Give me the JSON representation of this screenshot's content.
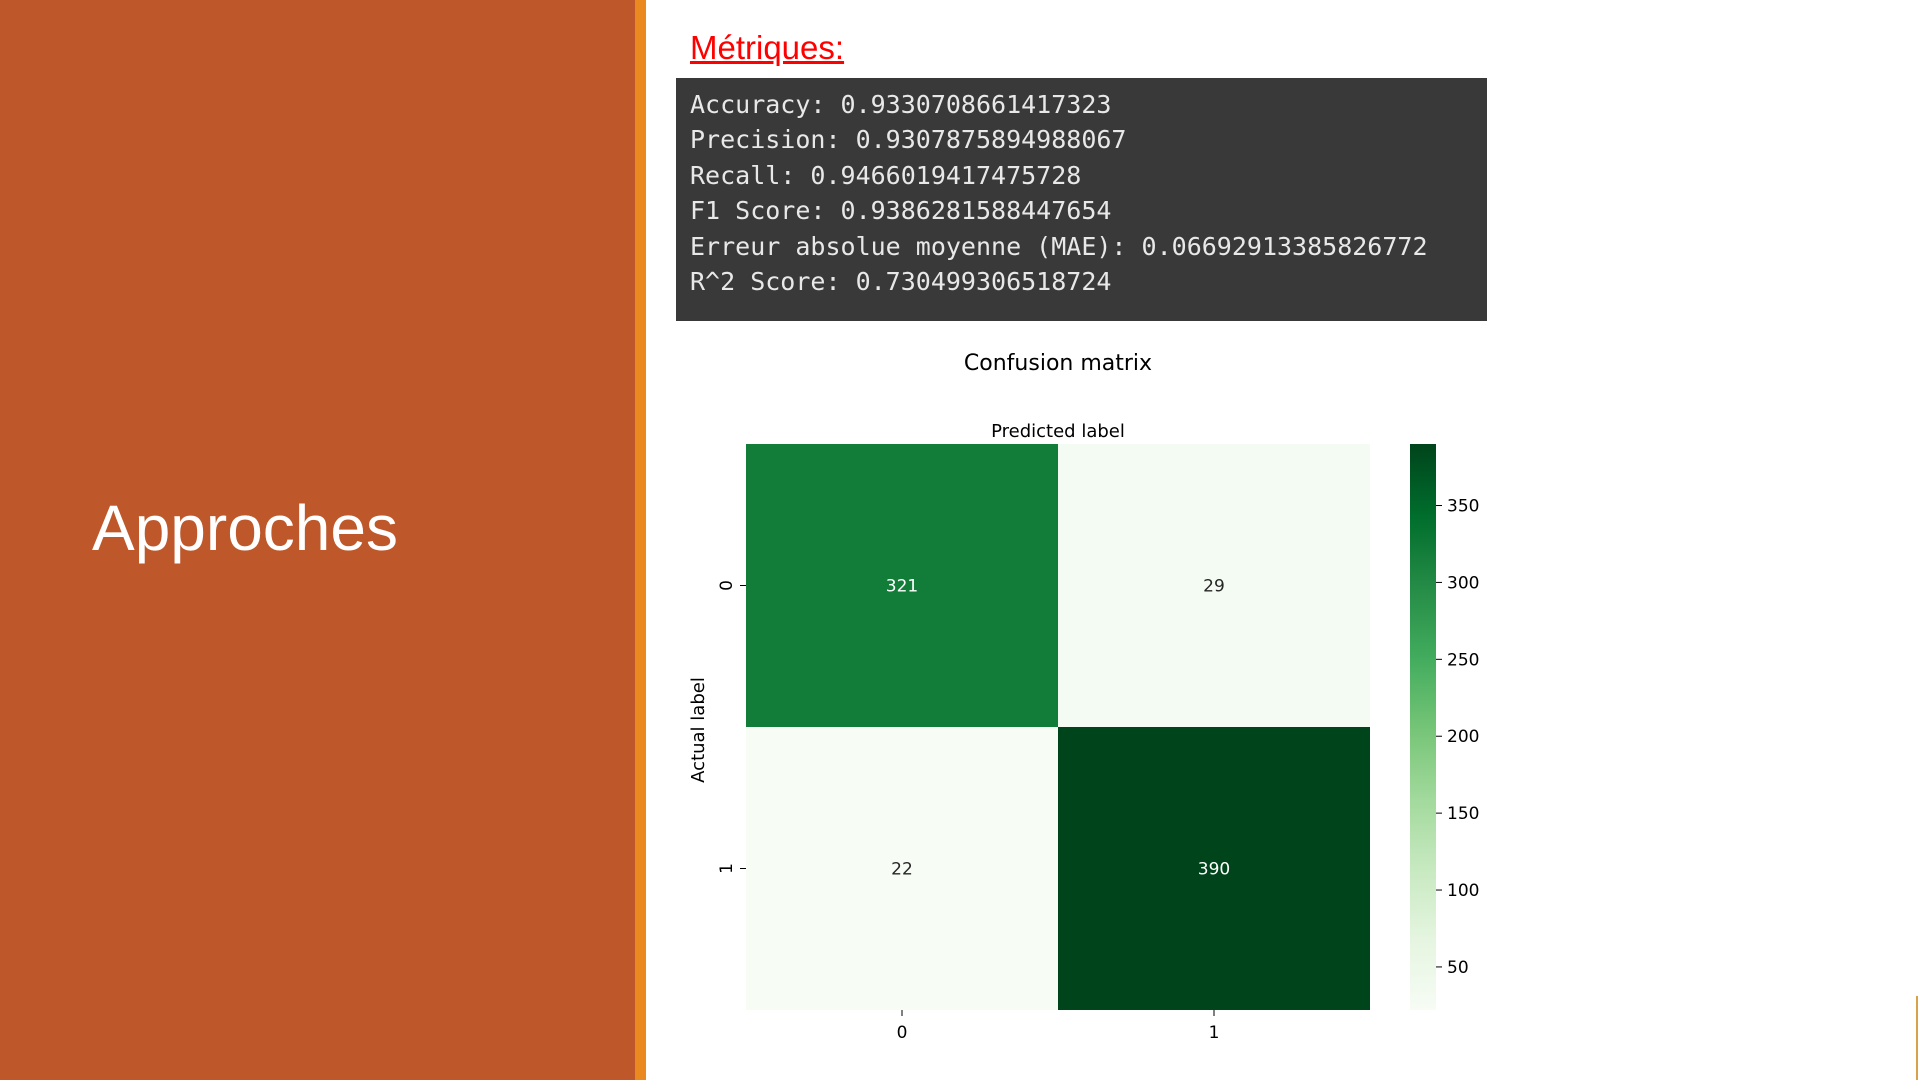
{
  "slide": {
    "title": "Approches",
    "metrics_heading": "Métriques:"
  },
  "metrics": [
    "Accuracy: 0.9330708661417323",
    "Precision: 0.9307875894988067",
    "Recall: 0.9466019417475728",
    "F1 Score: 0.9386281588447654",
    "Erreur absolue moyenne (MAE): 0.06692913385826772",
    "R^2 Score: 0.730499306518724"
  ],
  "colors": {
    "left_panel": "#be582b",
    "accent_bar": "#e9891f",
    "heading": "#ff0000",
    "code_background": "#393939",
    "code_text": "#e8e8e8"
  },
  "chart_data": {
    "type": "heatmap",
    "title": "Confusion matrix",
    "xlabel": "Predicted label",
    "ylabel": "Actual label",
    "x_categories": [
      "0",
      "1"
    ],
    "y_categories": [
      "0",
      "1"
    ],
    "values": [
      [
        321,
        29
      ],
      [
        22,
        390
      ]
    ],
    "colorscale": "Greens",
    "colorbar_ticks": [
      50,
      100,
      150,
      200,
      250,
      300,
      350
    ],
    "colorbar_range": [
      22,
      390
    ],
    "annotations": true,
    "grid": false
  }
}
